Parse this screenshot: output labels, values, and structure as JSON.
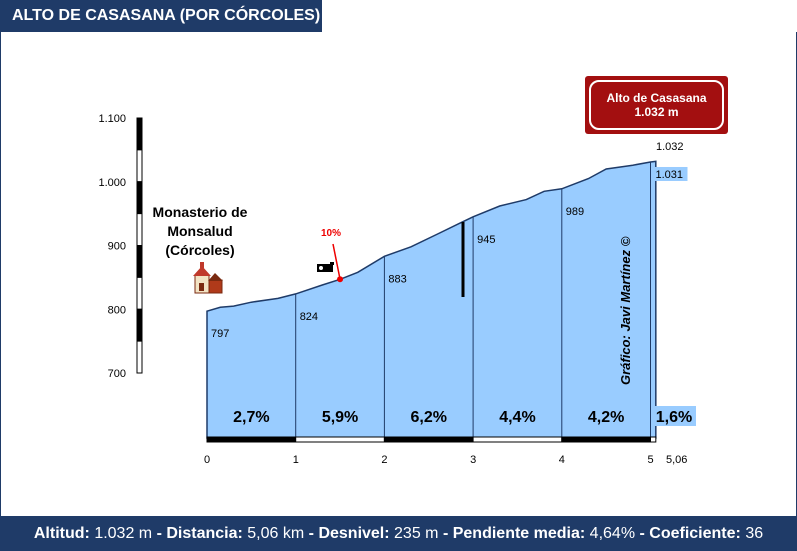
{
  "title": "ALTO DE CASASANA (POR CÓRCOLES)",
  "summit": {
    "name": "Alto de Casasana",
    "altitude": "1.032 m"
  },
  "place": {
    "line1": "Monasterio de",
    "line2": "Monsalud",
    "line3": "(Córcoles)"
  },
  "credit": "Gráfico: Javi Martínez ©",
  "steep_label": "10%",
  "summit_value_label": "1.032",
  "footer": {
    "alt_label": "Altitud:",
    "alt_value": "1.032 m",
    "dist_label": "Distancia:",
    "dist_value": "5,06 km",
    "desn_label": "Desnivel:",
    "desn_value": "235 m",
    "pend_label": "Pendiente media:",
    "pend_value": "4,64%",
    "coef_label": "Coeficiente:",
    "coef_value": "36",
    "sep": "-"
  },
  "colors": {
    "header": "#1f3b68",
    "fill": "#99ccff",
    "summit": "#a30f10",
    "gradient_highlight": "#99ccff"
  },
  "chart_data": {
    "type": "area",
    "title": "ALTO DE CASASANA (POR CÓRCOLES)",
    "xlabel": "",
    "ylabel": "",
    "xlim": [
      0,
      5.06
    ],
    "ylim": [
      700,
      1100
    ],
    "x_ticks": [
      "0",
      "1",
      "2",
      "3",
      "4",
      "5",
      "5,06"
    ],
    "y_ticks": [
      "700",
      "800",
      "900",
      "1.000",
      "1.100"
    ],
    "km_points": [
      0,
      1,
      2,
      3,
      4,
      5,
      5.06
    ],
    "altitudes": [
      797,
      824,
      883,
      945,
      989,
      1031,
      1032
    ],
    "altitude_labels": [
      "797",
      "824",
      "883",
      "945",
      "989",
      "1.031"
    ],
    "gradients": [
      "2,7%",
      "5,9%",
      "6,2%",
      "4,4%",
      "4,2%",
      "1,6%"
    ],
    "profile": [
      [
        0,
        797
      ],
      [
        0.15,
        803
      ],
      [
        0.3,
        805
      ],
      [
        0.5,
        811
      ],
      [
        0.8,
        817
      ],
      [
        1,
        824
      ],
      [
        1.3,
        838
      ],
      [
        1.5,
        847
      ],
      [
        1.7,
        858
      ],
      [
        2,
        883
      ],
      [
        2.3,
        898
      ],
      [
        2.6,
        918
      ],
      [
        2.85,
        935
      ],
      [
        3,
        945
      ],
      [
        3.3,
        962
      ],
      [
        3.6,
        972
      ],
      [
        3.8,
        985
      ],
      [
        4,
        989
      ],
      [
        4.3,
        1005
      ],
      [
        4.5,
        1020
      ],
      [
        4.8,
        1026
      ],
      [
        5,
        1031
      ],
      [
        5.06,
        1032
      ]
    ],
    "steep_point": {
      "km": 1.5,
      "label": "10%"
    }
  }
}
